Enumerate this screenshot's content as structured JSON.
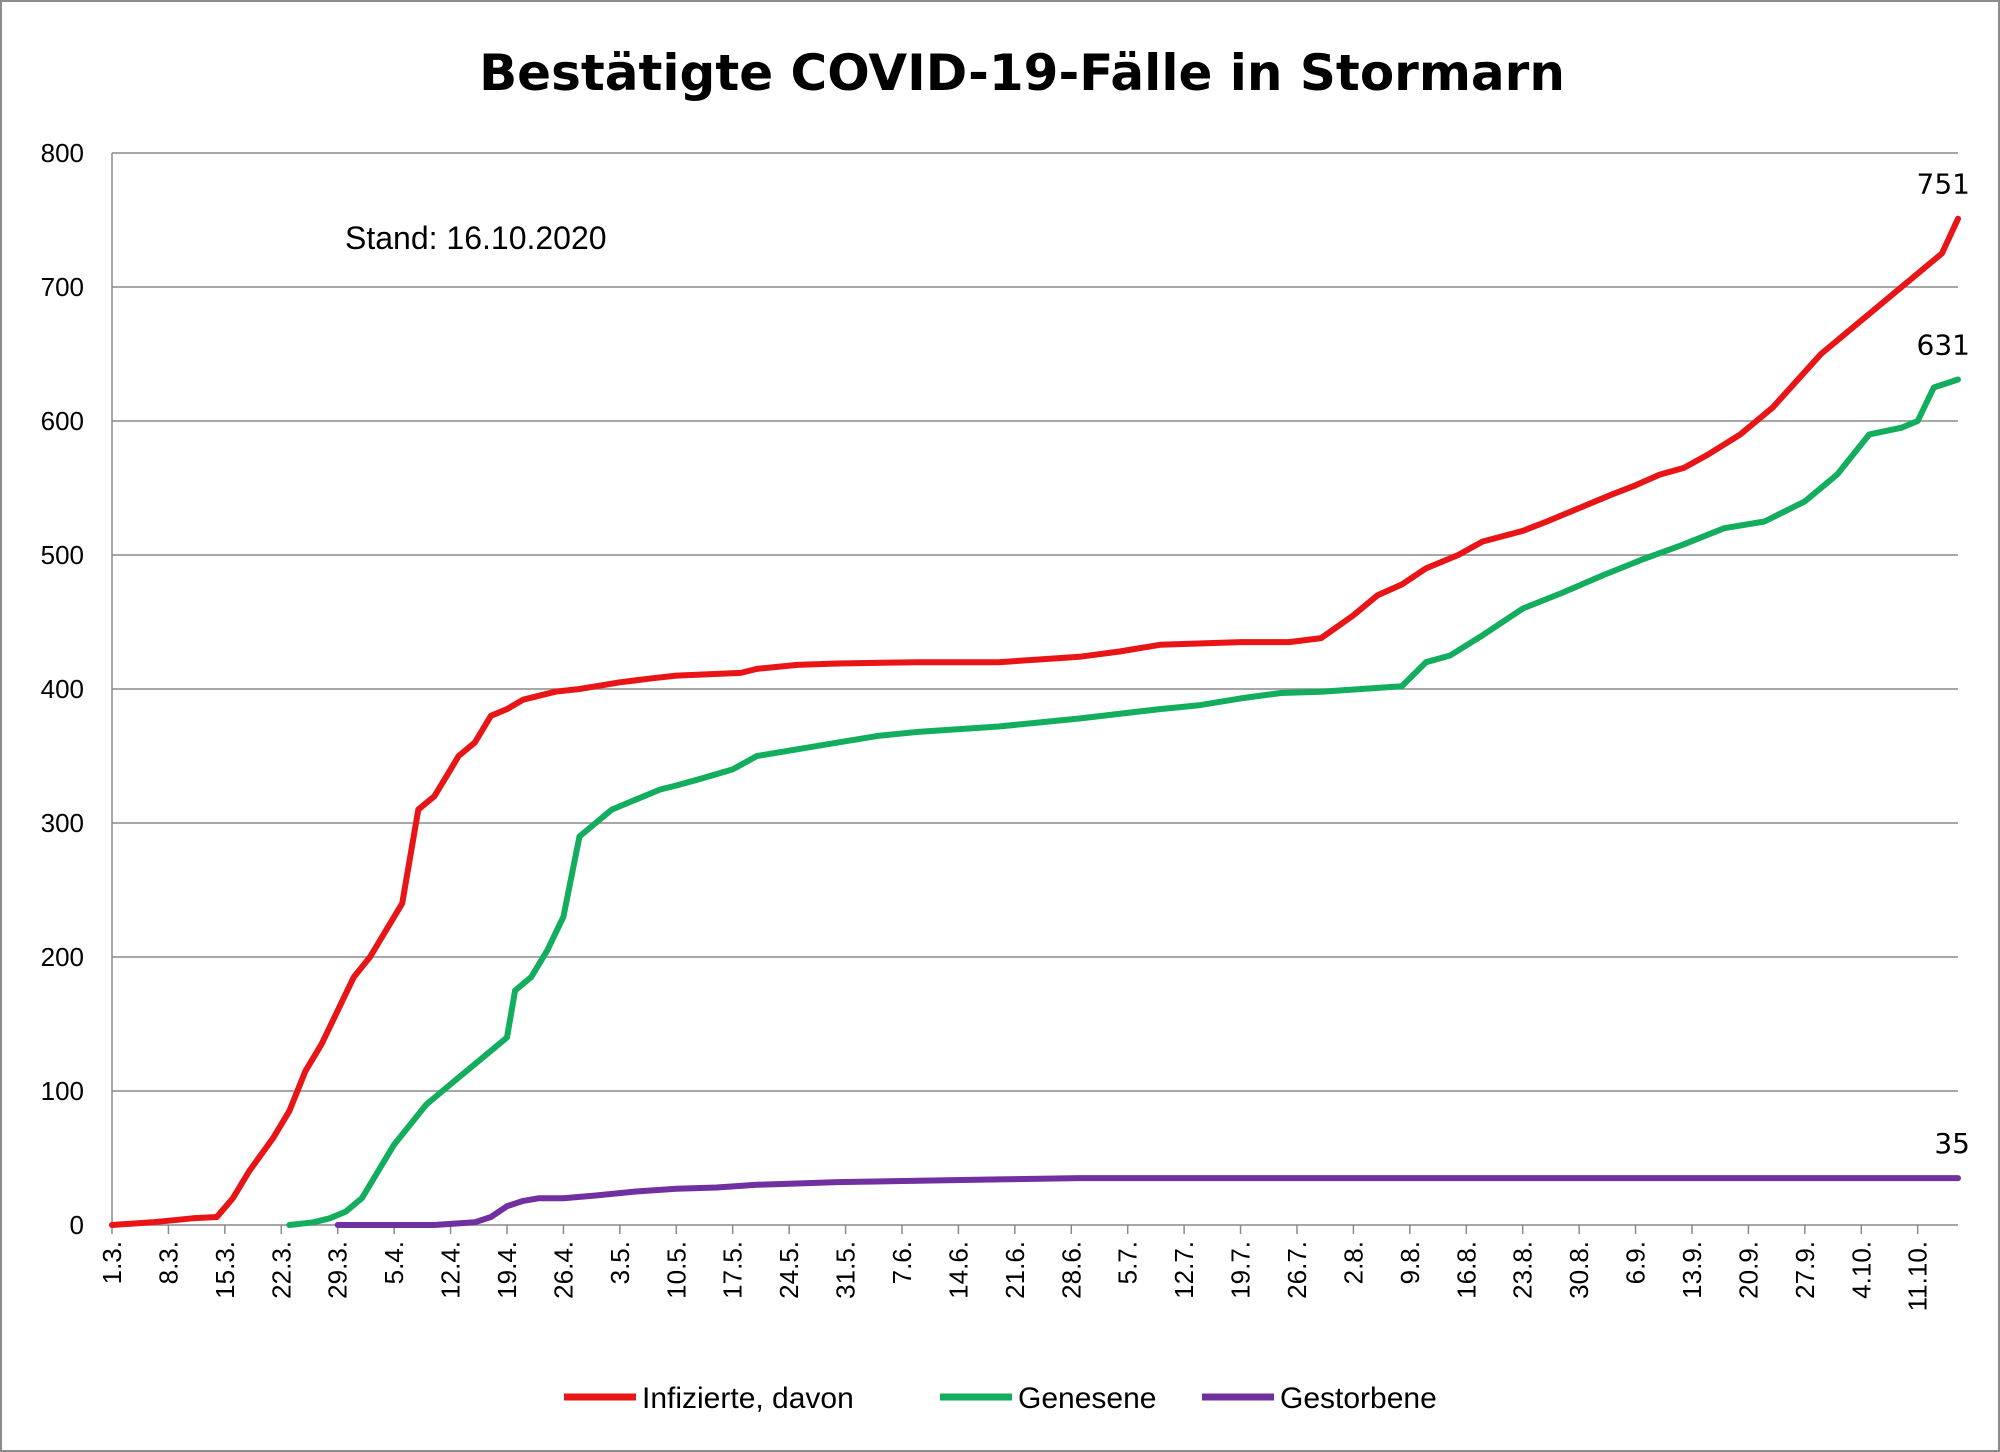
{
  "chart_data": {
    "type": "line",
    "title": "Bestätigte COVID-19-Fälle in Stormarn",
    "annotation": "Stand: 16.10.2020",
    "x_unit": "day index (0 = 1.3.2020)",
    "x_range": [
      0,
      229
    ],
    "ylim": [
      0,
      800
    ],
    "y_ticks": [
      0,
      100,
      200,
      300,
      400,
      500,
      600,
      700,
      800
    ],
    "y_tick_labels": [
      "0",
      "100",
      "200",
      "300",
      "400",
      "500",
      "600",
      "700",
      "800"
    ],
    "grid": true,
    "legend_position": "bottom",
    "x_ticks": [
      {
        "day": 0,
        "label": "1.3."
      },
      {
        "day": 7,
        "label": "8.3."
      },
      {
        "day": 14,
        "label": "15.3."
      },
      {
        "day": 21,
        "label": "22.3."
      },
      {
        "day": 28,
        "label": "29.3."
      },
      {
        "day": 35,
        "label": "5.4."
      },
      {
        "day": 42,
        "label": "12.4."
      },
      {
        "day": 49,
        "label": "19.4."
      },
      {
        "day": 56,
        "label": "26.4."
      },
      {
        "day": 63,
        "label": "3.5."
      },
      {
        "day": 70,
        "label": "10.5."
      },
      {
        "day": 77,
        "label": "17.5."
      },
      {
        "day": 84,
        "label": "24.5."
      },
      {
        "day": 91,
        "label": "31.5."
      },
      {
        "day": 98,
        "label": "7.6."
      },
      {
        "day": 105,
        "label": "14.6."
      },
      {
        "day": 112,
        "label": "21.6."
      },
      {
        "day": 119,
        "label": "28.6."
      },
      {
        "day": 126,
        "label": "5.7."
      },
      {
        "day": 133,
        "label": "12.7."
      },
      {
        "day": 140,
        "label": "19.7."
      },
      {
        "day": 147,
        "label": "26.7."
      },
      {
        "day": 154,
        "label": "2.8."
      },
      {
        "day": 161,
        "label": "9.8."
      },
      {
        "day": 168,
        "label": "16.8."
      },
      {
        "day": 175,
        "label": "23.8."
      },
      {
        "day": 182,
        "label": "30.8."
      },
      {
        "day": 189,
        "label": "6.9."
      },
      {
        "day": 196,
        "label": "13.9."
      },
      {
        "day": 203,
        "label": "20.9."
      },
      {
        "day": 210,
        "label": "27.9."
      },
      {
        "day": 217,
        "label": "4.10."
      },
      {
        "day": 224,
        "label": "11.10."
      }
    ],
    "series": [
      {
        "name": "Infizierte, davon",
        "color": "#e81416",
        "end_label": "751",
        "x": [
          0,
          5,
          10,
          13,
          15,
          17,
          20,
          22,
          24,
          26,
          28,
          30,
          32,
          34,
          36,
          38,
          40,
          42,
          43,
          45,
          47,
          49,
          51,
          53,
          55,
          58,
          60,
          63,
          67,
          70,
          78,
          80,
          85,
          90,
          100,
          110,
          115,
          120,
          125,
          130,
          140,
          146,
          150,
          154,
          157,
          160,
          163,
          167,
          170,
          175,
          178,
          182,
          186,
          189,
          192,
          195,
          198,
          202,
          206,
          209,
          212,
          215,
          218,
          221,
          224,
          227,
          229
        ],
        "y": [
          0,
          2,
          5,
          6,
          20,
          40,
          65,
          85,
          115,
          135,
          160,
          185,
          200,
          220,
          240,
          310,
          320,
          340,
          350,
          360,
          380,
          385,
          392,
          395,
          398,
          400,
          402,
          405,
          408,
          410,
          412,
          415,
          418,
          419,
          420,
          420,
          422,
          424,
          428,
          433,
          435,
          435,
          438,
          455,
          470,
          478,
          490,
          500,
          510,
          518,
          525,
          535,
          545,
          552,
          560,
          565,
          575,
          590,
          610,
          630,
          650,
          665,
          680,
          695,
          710,
          725,
          751
        ]
      },
      {
        "name": "Genesene",
        "color": "#13ad5e",
        "end_label": "631",
        "x": [
          22,
          25,
          27,
          29,
          31,
          33,
          35,
          37,
          39,
          41,
          43,
          45,
          47,
          49,
          50,
          52,
          54,
          56,
          58,
          60,
          61,
          62,
          64,
          66,
          68,
          70,
          73,
          77,
          80,
          85,
          90,
          95,
          100,
          110,
          115,
          120,
          130,
          135,
          140,
          145,
          150,
          155,
          160,
          163,
          166,
          170,
          175,
          180,
          185,
          190,
          195,
          200,
          205,
          210,
          214,
          218,
          222,
          224,
          226,
          229
        ],
        "y": [
          0,
          2,
          5,
          10,
          20,
          40,
          60,
          75,
          90,
          100,
          110,
          120,
          130,
          140,
          175,
          185,
          205,
          230,
          290,
          300,
          305,
          310,
          315,
          320,
          325,
          328,
          333,
          340,
          350,
          355,
          360,
          365,
          368,
          372,
          375,
          378,
          385,
          388,
          393,
          397,
          398,
          400,
          402,
          420,
          425,
          440,
          460,
          472,
          485,
          497,
          508,
          520,
          525,
          540,
          560,
          590,
          595,
          600,
          625,
          631
        ]
      },
      {
        "name": "Gestorbene",
        "color": "#7030a0",
        "end_label": "35",
        "x": [
          28,
          40,
          45,
          47,
          49,
          51,
          53,
          56,
          60,
          65,
          70,
          75,
          80,
          85,
          90,
          100,
          110,
          120,
          140,
          160,
          180,
          200,
          229
        ],
        "y": [
          0,
          0,
          2,
          6,
          14,
          18,
          20,
          20,
          22,
          25,
          27,
          28,
          30,
          31,
          32,
          33,
          34,
          35,
          35,
          35,
          35,
          35,
          35
        ]
      }
    ]
  }
}
